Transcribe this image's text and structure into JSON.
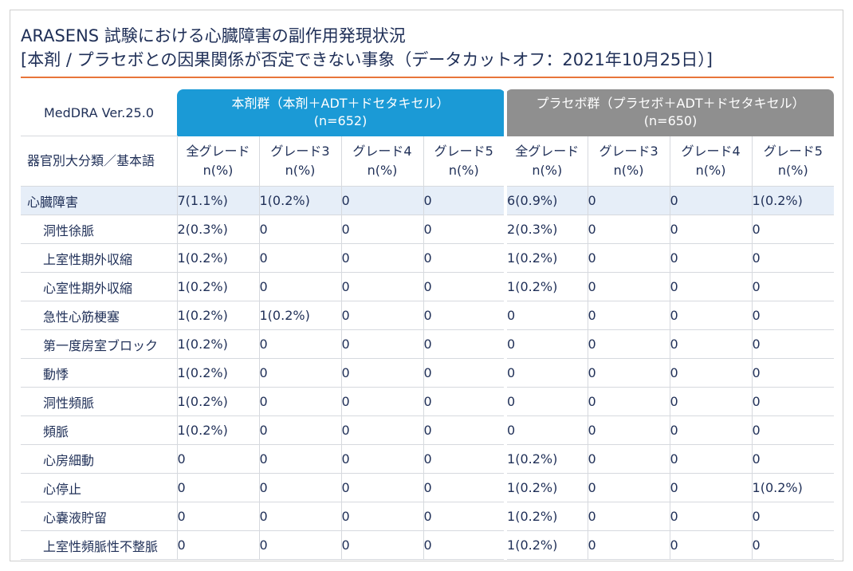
{
  "title": {
    "line1": "ARASENS 試験における心臓障害の副作用発現状況",
    "line2": "[本剤 / プラセボとの因果関係が否定できない事象（データカットオフ：2021年10月25日）]"
  },
  "table": {
    "version_label": "MedDRA Ver.25.0",
    "category_header": "器官別大分類／基本語",
    "groups": [
      {
        "name": "本剤群（本剤＋ADT＋ドセタキセル）",
        "n": "(n=652)"
      },
      {
        "name": "プラセボ群（プラセボ＋ADT＋ドセタキセル）",
        "n": "(n=650)"
      }
    ],
    "grade_headers": [
      {
        "grade": "全グレード",
        "unit": "n(%)"
      },
      {
        "grade": "グレード3",
        "unit": "n(%)"
      },
      {
        "grade": "グレード4",
        "unit": "n(%)"
      },
      {
        "grade": "グレード5",
        "unit": "n(%)"
      },
      {
        "grade": "全グレード",
        "unit": "n(%)"
      },
      {
        "grade": "グレード3",
        "unit": "n(%)"
      },
      {
        "grade": "グレード4",
        "unit": "n(%)"
      },
      {
        "grade": "グレード5",
        "unit": "n(%)"
      }
    ],
    "rows": [
      {
        "name": "心臓障害",
        "values": [
          "7(1.1%)",
          "1(0.2%)",
          "0",
          "0",
          "6(0.9%)",
          "0",
          "0",
          "1(0.2%)"
        ]
      },
      {
        "name": "洞性徐脈",
        "values": [
          "2(0.3%)",
          "0",
          "0",
          "0",
          "2(0.3%)",
          "0",
          "0",
          "0"
        ]
      },
      {
        "name": "上室性期外収縮",
        "values": [
          "1(0.2%)",
          "0",
          "0",
          "0",
          "1(0.2%)",
          "0",
          "0",
          "0"
        ]
      },
      {
        "name": "心室性期外収縮",
        "values": [
          "1(0.2%)",
          "0",
          "0",
          "0",
          "1(0.2%)",
          "0",
          "0",
          "0"
        ]
      },
      {
        "name": "急性心筋梗塞",
        "values": [
          "1(0.2%)",
          "1(0.2%)",
          "0",
          "0",
          "0",
          "0",
          "0",
          "0"
        ]
      },
      {
        "name": "第一度房室ブロック",
        "values": [
          "1(0.2%)",
          "0",
          "0",
          "0",
          "0",
          "0",
          "0",
          "0"
        ]
      },
      {
        "name": "動悸",
        "values": [
          "1(0.2%)",
          "0",
          "0",
          "0",
          "0",
          "0",
          "0",
          "0"
        ]
      },
      {
        "name": "洞性頻脈",
        "values": [
          "1(0.2%)",
          "0",
          "0",
          "0",
          "0",
          "0",
          "0",
          "0"
        ]
      },
      {
        "name": "頻脈",
        "values": [
          "1(0.2%)",
          "0",
          "0",
          "0",
          "0",
          "0",
          "0",
          "0"
        ]
      },
      {
        "name": "心房細動",
        "values": [
          "0",
          "0",
          "0",
          "0",
          "1(0.2%)",
          "0",
          "0",
          "0"
        ]
      },
      {
        "name": "心停止",
        "values": [
          "0",
          "0",
          "0",
          "0",
          "1(0.2%)",
          "0",
          "0",
          "1(0.2%)"
        ]
      },
      {
        "name": "心嚢液貯留",
        "values": [
          "0",
          "0",
          "0",
          "0",
          "1(0.2%)",
          "0",
          "0",
          "0"
        ]
      },
      {
        "name": "上室性頻脈性不整脈",
        "values": [
          "0",
          "0",
          "0",
          "0",
          "1(0.2%)",
          "0",
          "0",
          "0"
        ]
      }
    ]
  },
  "colors": {
    "title_text": "#1f2f57",
    "rule": "#e8753a",
    "group_drug": "#1b9ad6",
    "group_placebo": "#8f8f8f",
    "highlight_row": "#e6eef8"
  }
}
